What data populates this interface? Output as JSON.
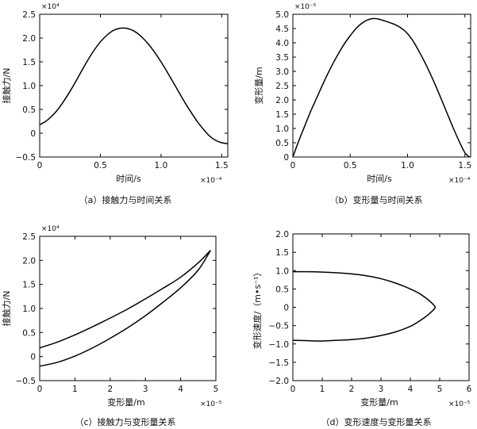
{
  "chart_data": [
    {
      "id": "a",
      "type": "line",
      "caption": "（a）接触力与时间关系",
      "xlabel": "时间/s",
      "ylabel": "接触力/N",
      "x_multiplier": "×10⁻⁴",
      "y_multiplier": "×10⁴",
      "xlim": [
        0,
        1.55
      ],
      "ylim": [
        -0.5,
        2.5
      ],
      "xticks": [
        0,
        0.5,
        1.0,
        1.5
      ],
      "xtick_labels": [
        "0",
        "0.5",
        "1.0",
        "1.5"
      ],
      "yticks": [
        -0.5,
        0,
        0.5,
        1.0,
        1.5,
        2.0,
        2.5
      ],
      "ytick_labels": [
        "−0.5",
        "0",
        "0.5",
        "1.0",
        "1.5",
        "2.0",
        "2.5"
      ],
      "grid": false,
      "series": [
        {
          "x": [
            0,
            0.05,
            0.1,
            0.15,
            0.2,
            0.25,
            0.3,
            0.35,
            0.4,
            0.45,
            0.5,
            0.55,
            0.6,
            0.65,
            0.7,
            0.75,
            0.8,
            0.85,
            0.9,
            0.95,
            1.0,
            1.05,
            1.1,
            1.15,
            1.2,
            1.25,
            1.3,
            1.35,
            1.4,
            1.45,
            1.5,
            1.55
          ],
          "y": [
            0.18,
            0.25,
            0.36,
            0.5,
            0.68,
            0.88,
            1.1,
            1.33,
            1.55,
            1.75,
            1.92,
            2.05,
            2.15,
            2.2,
            2.21,
            2.18,
            2.11,
            2.0,
            1.86,
            1.69,
            1.5,
            1.29,
            1.07,
            0.85,
            0.63,
            0.43,
            0.24,
            0.08,
            -0.06,
            -0.15,
            -0.2,
            -0.22
          ]
        }
      ]
    },
    {
      "id": "b",
      "type": "line",
      "caption": "（b）变形量与时间关系",
      "xlabel": "时间/s",
      "ylabel": "变形量/m",
      "x_multiplier": "×10⁻⁴",
      "y_multiplier": "×10⁻⁵",
      "xlim": [
        0,
        1.55
      ],
      "ylim": [
        0,
        5.0
      ],
      "xticks": [
        0,
        0.5,
        1.0,
        1.5
      ],
      "xtick_labels": [
        "0",
        "0.5",
        "1.0",
        "1.5"
      ],
      "yticks": [
        0,
        0.5,
        1.0,
        1.5,
        2.0,
        2.5,
        3.0,
        3.5,
        4.0,
        4.5,
        5.0
      ],
      "ytick_labels": [
        "0",
        "0.5",
        "1.0",
        "1.5",
        "2.0",
        "2.5",
        "3.0",
        "3.5",
        "4.0",
        "4.5",
        "5.0"
      ],
      "grid": false,
      "series": [
        {
          "x": [
            0,
            0.05,
            0.1,
            0.15,
            0.2,
            0.25,
            0.3,
            0.35,
            0.4,
            0.45,
            0.5,
            0.55,
            0.6,
            0.65,
            0.7,
            0.75,
            0.8,
            0.85,
            0.9,
            0.95,
            1.0,
            1.05,
            1.1,
            1.15,
            1.2,
            1.25,
            1.3,
            1.35,
            1.4,
            1.45,
            1.5,
            1.54
          ],
          "y": [
            0,
            0.55,
            1.05,
            1.55,
            2.0,
            2.45,
            2.88,
            3.28,
            3.64,
            3.97,
            4.25,
            4.5,
            4.68,
            4.8,
            4.85,
            4.83,
            4.77,
            4.7,
            4.62,
            4.5,
            4.32,
            4.05,
            3.7,
            3.32,
            2.9,
            2.45,
            1.97,
            1.48,
            1.0,
            0.55,
            0.15,
            0
          ]
        }
      ]
    },
    {
      "id": "c",
      "type": "line",
      "caption": "（c）接触力与变形量关系",
      "xlabel": "变形量/m",
      "ylabel": "接触力/N",
      "x_multiplier": "×10⁻⁵",
      "y_multiplier": "×10⁴",
      "xlim": [
        0,
        5
      ],
      "ylim": [
        -0.5,
        2.5
      ],
      "xticks": [
        0,
        1,
        2,
        3,
        4,
        5
      ],
      "xtick_labels": [
        "0",
        "1",
        "2",
        "3",
        "4",
        "5"
      ],
      "yticks": [
        -0.5,
        0,
        0.5,
        1.0,
        1.5,
        2.0,
        2.5
      ],
      "ytick_labels": [
        "−0.5",
        "0",
        "0.5",
        "1.0",
        "1.5",
        "2.0",
        "2.5"
      ],
      "grid": false,
      "series": [
        {
          "name": "",
          "x": [
            0,
            0.5,
            1.0,
            1.5,
            2.0,
            2.5,
            3.0,
            3.5,
            4.0,
            4.5,
            4.85
          ],
          "y": [
            0.18,
            0.3,
            0.45,
            0.62,
            0.8,
            0.99,
            1.2,
            1.42,
            1.65,
            1.95,
            2.21
          ]
        },
        {
          "name": "",
          "x": [
            4.85,
            4.5,
            4.0,
            3.5,
            3.0,
            2.5,
            2.0,
            1.5,
            1.0,
            0.5,
            0
          ],
          "y": [
            2.21,
            1.8,
            1.43,
            1.13,
            0.85,
            0.6,
            0.38,
            0.18,
            0.01,
            -0.12,
            -0.2
          ]
        }
      ]
    },
    {
      "id": "d",
      "type": "line",
      "caption": "（d）变形速度与变形量关系",
      "xlabel": "变形量/m",
      "ylabel": "变形速度/（m•s⁻¹）",
      "x_multiplier": "×10⁻⁵",
      "y_multiplier": "",
      "xlim": [
        0,
        6
      ],
      "ylim": [
        -2.0,
        2.0
      ],
      "xticks": [
        0,
        1,
        2,
        3,
        4,
        5,
        6
      ],
      "xtick_labels": [
        "0",
        "1",
        "2",
        "3",
        "4",
        "5",
        "6"
      ],
      "yticks": [
        -2.0,
        -1.5,
        -1.0,
        -0.5,
        0,
        0.5,
        1.0,
        1.5,
        2.0
      ],
      "ytick_labels": [
        "−2.0",
        "−1.5",
        "−1.0",
        "−0.5",
        "0",
        "0.5",
        "1.0",
        "1.5",
        "2.0"
      ],
      "grid": false,
      "series": [
        {
          "x": [
            0,
            0.5,
            1.0,
            1.5,
            2.0,
            2.5,
            3.0,
            3.5,
            4.0,
            4.3,
            4.55,
            4.7,
            4.8,
            4.85,
            4.8,
            4.7,
            4.55,
            4.3,
            4.0,
            3.5,
            3.0,
            2.5,
            2.0,
            1.5,
            1.0,
            0.8,
            0.5,
            0
          ],
          "y": [
            0.97,
            0.97,
            0.96,
            0.94,
            0.91,
            0.86,
            0.78,
            0.66,
            0.5,
            0.38,
            0.24,
            0.14,
            0.06,
            0,
            -0.06,
            -0.14,
            -0.24,
            -0.38,
            -0.52,
            -0.67,
            -0.77,
            -0.84,
            -0.88,
            -0.9,
            -0.92,
            -0.92,
            -0.91,
            -0.9
          ]
        }
      ]
    }
  ]
}
